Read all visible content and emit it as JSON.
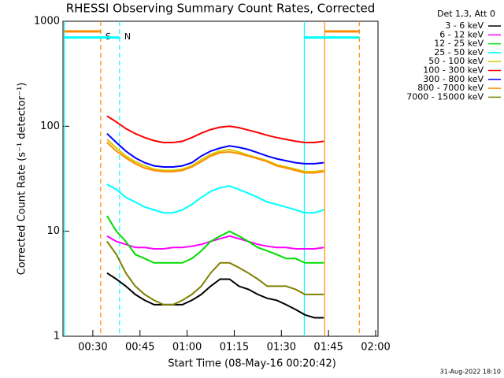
{
  "chart_data": {
    "type": "line",
    "title": "RHESSI Observing Summary Count Rates, Corrected",
    "x_label": "Start Time (08-May-16 00:20:42)",
    "y_label": "Corrected Count Rate (s⁻¹ detector⁻¹)",
    "legend_title": "Det 1,3, Att 0",
    "footer": "31-Aug-2022 18:10",
    "log_y": true,
    "xlim": [
      20.5,
      120.75
    ],
    "ylim": [
      1,
      1000
    ],
    "xticks": [
      {
        "value": 30,
        "label": "00:30"
      },
      {
        "value": 45,
        "label": "00:45"
      },
      {
        "value": 60,
        "label": "01:00"
      },
      {
        "value": 75,
        "label": "01:15"
      },
      {
        "value": 90,
        "label": "01:30"
      },
      {
        "value": 105,
        "label": "01:45"
      },
      {
        "value": 120,
        "label": "02:00"
      }
    ],
    "yticks": [
      1,
      10,
      100,
      1000
    ],
    "x": [
      34.5,
      37.5,
      40.5,
      43.5,
      46.5,
      49.5,
      52.5,
      55.5,
      58.5,
      61.5,
      64.5,
      67.5,
      70.5,
      73.5,
      76.5,
      79.5,
      82.5,
      85.5,
      88.5,
      91.5,
      94.5,
      97.5,
      100.5,
      103.5
    ],
    "series": [
      {
        "name": "3 - 6 keV",
        "color": "#000000",
        "values": [
          4,
          3.5,
          3,
          2.5,
          2.2,
          2,
          2,
          2,
          2,
          2.2,
          2.5,
          3,
          3.5,
          3.5,
          3,
          2.8,
          2.5,
          2.3,
          2.2,
          2,
          1.8,
          1.6,
          1.5,
          1.5
        ]
      },
      {
        "name": "6 - 12 keV",
        "color": "#ff00ff",
        "values": [
          9,
          8,
          7.5,
          7,
          7,
          6.8,
          6.8,
          7,
          7,
          7.2,
          7.5,
          8,
          8.5,
          9,
          8.5,
          8,
          7.5,
          7.2,
          7,
          7,
          6.8,
          6.8,
          6.8,
          7
        ]
      },
      {
        "name": "12 - 25 keV",
        "color": "#00dd00",
        "values": [
          14,
          10,
          8,
          6,
          5.5,
          5,
          5,
          5,
          5,
          5.5,
          6.5,
          8,
          9,
          10,
          9,
          8,
          7,
          6.5,
          6,
          5.5,
          5.5,
          5,
          5,
          5
        ]
      },
      {
        "name": "25 - 50 keV",
        "color": "#00ffff",
        "values": [
          28,
          25,
          21,
          19,
          17,
          16,
          15,
          15,
          16,
          18,
          21,
          24,
          26,
          27,
          25,
          23,
          21,
          19,
          18,
          17,
          16,
          15,
          15,
          16
        ]
      },
      {
        "name": "50 - 100 keV",
        "color": "#d8c800",
        "values": [
          75,
          62,
          52,
          46,
          42,
          39,
          38,
          38,
          39,
          42,
          48,
          54,
          58,
          60,
          57,
          53,
          50,
          47,
          43,
          41,
          39,
          37,
          37,
          38
        ]
      },
      {
        "name": "100 - 300 keV",
        "color": "#ff0000",
        "values": [
          125,
          110,
          95,
          85,
          78,
          73,
          70,
          70,
          72,
          78,
          86,
          93,
          98,
          100,
          97,
          92,
          87,
          82,
          78,
          75,
          72,
          70,
          70,
          72
        ]
      },
      {
        "name": "300 - 800 keV",
        "color": "#0000ff",
        "values": [
          85,
          70,
          58,
          50,
          45,
          42,
          41,
          41,
          42,
          45,
          52,
          58,
          62,
          65,
          63,
          60,
          56,
          52,
          49,
          47,
          45,
          44,
          44,
          45
        ]
      },
      {
        "name": "800 - 7000 keV",
        "color": "#ff8c00",
        "values": [
          70,
          58,
          50,
          44,
          40,
          38,
          37,
          37,
          38,
          41,
          46,
          52,
          56,
          57,
          55,
          52,
          49,
          46,
          42,
          40,
          38,
          36,
          36,
          37
        ]
      },
      {
        "name": "7000 - 15000 keV",
        "color": "#808000",
        "values": [
          8,
          6,
          4,
          3,
          2.5,
          2.2,
          2,
          2,
          2.2,
          2.5,
          3,
          4,
          5,
          5,
          4.5,
          4,
          3.5,
          3,
          3,
          3,
          2.8,
          2.5,
          2.5,
          2.5
        ]
      }
    ],
    "markers": [
      {
        "x": 20.9,
        "color": "#00ffff",
        "style": "solid"
      },
      {
        "x": 32.5,
        "color": "#ff8c00",
        "style": "dashed",
        "label": "S"
      },
      {
        "x": 38.5,
        "color": "#00ffff",
        "style": "dashed",
        "label": "N"
      },
      {
        "x": 97.3,
        "color": "#00ffff",
        "style": "solid"
      },
      {
        "x": 103.8,
        "color": "#ff8c00",
        "style": "solid"
      },
      {
        "x": 114.8,
        "color": "#ff8c00",
        "style": "dashed"
      }
    ],
    "bars": [
      {
        "x": [
          20.9,
          32.5
        ],
        "y": 800,
        "color": "#ff8c00"
      },
      {
        "x": [
          20.9,
          38.5
        ],
        "y": 700,
        "color": "#00ffff"
      },
      {
        "x": [
          103.8,
          114.8
        ],
        "y": 800,
        "color": "#ff8c00"
      },
      {
        "x": [
          97.3,
          114.8
        ],
        "y": 700,
        "color": "#00ffff"
      }
    ]
  }
}
